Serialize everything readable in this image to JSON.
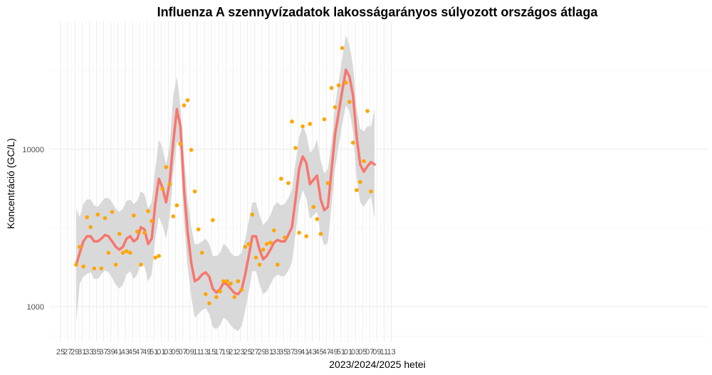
{
  "chart_data": {
    "type": "line",
    "title": "Influenza A szennyvízadatok lakosságarányos súlyozott országos átlaga",
    "xlabel": "2023/2024/2025 hetei",
    "ylabel": "Koncentráció (GC/L)",
    "y_scale": "log10",
    "grid": true,
    "x_tick_labels": [
      "25",
      "27",
      "29",
      "31",
      "33",
      "35",
      "37",
      "39",
      "41",
      "43",
      "45",
      "47",
      "49",
      "51",
      "01",
      "03",
      "05",
      "07",
      "09",
      "11",
      "13",
      "15",
      "17",
      "19",
      "21",
      "23",
      "25",
      "27",
      "29",
      "31",
      "33",
      "35",
      "37",
      "39",
      "41",
      "43",
      "45",
      "47",
      "49",
      "51",
      "01",
      "03",
      "05",
      "07",
      "09",
      "11",
      "13"
    ],
    "y_tick_labels": [
      "1000",
      "10000"
    ],
    "y_ticks": [
      1000,
      10000
    ],
    "ylim": [
      600,
      65000
    ],
    "colors": {
      "trend": "#F8766D",
      "points": "#FFA500",
      "band": "#D9D9D9"
    },
    "series": [
      {
        "kind": "points",
        "values": [
          1850,
          2400,
          1800,
          3700,
          3200,
          1750,
          3850,
          1750,
          3650,
          2200,
          4000,
          1850,
          2900,
          2200,
          2250,
          2200,
          3800,
          3000,
          1850,
          2950,
          4050,
          3500,
          2050,
          2100,
          5600,
          7700,
          6000,
          3750,
          4400,
          10800,
          19000,
          20500,
          9900,
          5400,
          3100,
          2200,
          1200,
          1050,
          3550,
          1150,
          1250,
          1450,
          1450,
          1400,
          1150,
          1450,
          1280,
          2400,
          2500,
          3850,
          2050,
          1850,
          2300,
          2500,
          2550,
          3050,
          1850,
          6500,
          2750,
          6100,
          15000,
          10200,
          2950,
          14000,
          2800,
          14500,
          4300,
          3600,
          2900,
          15500,
          6100,
          24500,
          18500,
          25500,
          44000,
          26500,
          20000,
          11000,
          5500,
          6200,
          8400,
          17500,
          5400
        ]
      },
      {
        "kind": "trend",
        "values": [
          1850,
          2200,
          2600,
          2800,
          2800,
          2600,
          2600,
          2700,
          2850,
          2800,
          2600,
          2400,
          2300,
          2400,
          2700,
          2800,
          2600,
          2700,
          3200,
          3100,
          2500,
          2700,
          4500,
          6500,
          5700,
          4600,
          6200,
          11000,
          18000,
          14000,
          5500,
          3000,
          1900,
          1450,
          1500,
          1600,
          1650,
          1550,
          1300,
          1230,
          1290,
          1420,
          1380,
          1300,
          1220,
          1200,
          1280,
          1600,
          2100,
          2800,
          2800,
          2300,
          2000,
          2100,
          2300,
          2550,
          2650,
          2600,
          2600,
          2850,
          3200,
          4800,
          7500,
          9000,
          8200,
          6000,
          6400,
          6800,
          4800,
          4100,
          4300,
          7300,
          12500,
          17000,
          23500,
          32000,
          29000,
          22000,
          12000,
          8000,
          7200,
          7800,
          8300,
          8000
        ]
      },
      {
        "kind": "band_upper",
        "values": [
          4200,
          3700,
          4500,
          4800,
          4800,
          4400,
          4300,
          4600,
          4900,
          4900,
          4600,
          4200,
          4000,
          4200,
          4700,
          4800,
          4500,
          4700,
          5400,
          5200,
          4200,
          4600,
          7500,
          11500,
          10200,
          8000,
          10500,
          22000,
          29000,
          19000,
          9000,
          4800,
          3200,
          2500,
          2500,
          2600,
          2700,
          2500,
          2100,
          2100,
          2200,
          2500,
          2400,
          2200,
          2100,
          2100,
          2200,
          2700,
          3500,
          4600,
          4600,
          3800,
          3300,
          3500,
          3800,
          4400,
          4600,
          4400,
          4500,
          4900,
          5500,
          8200,
          12000,
          14000,
          12500,
          9500,
          10000,
          11500,
          8500,
          7000,
          7500,
          11000,
          19000,
          27000,
          38000,
          53000,
          46000,
          34000,
          18000,
          13500,
          13000,
          14000,
          14000,
          18000
        ]
      },
      {
        "kind": "band_lower",
        "values": [
          800,
          1400,
          1550,
          1620,
          1650,
          1500,
          1500,
          1600,
          1700,
          1650,
          1520,
          1380,
          1300,
          1380,
          1600,
          1680,
          1500,
          1600,
          1900,
          1800,
          1450,
          1600,
          2700,
          3700,
          3300,
          2700,
          3700,
          7000,
          11200,
          10000,
          3400,
          1800,
          1150,
          850,
          900,
          950,
          980,
          900,
          740,
          720,
          760,
          850,
          820,
          760,
          720,
          700,
          750,
          950,
          1250,
          1680,
          1680,
          1380,
          1200,
          1250,
          1380,
          1530,
          1600,
          1560,
          1560,
          1700,
          1900,
          2900,
          4500,
          5500,
          4900,
          3600,
          3800,
          4000,
          2900,
          2450,
          2550,
          4400,
          7500,
          10500,
          14500,
          19000,
          17500,
          13000,
          6500,
          4600,
          4300,
          4700,
          5000,
          3600
        ]
      }
    ]
  }
}
